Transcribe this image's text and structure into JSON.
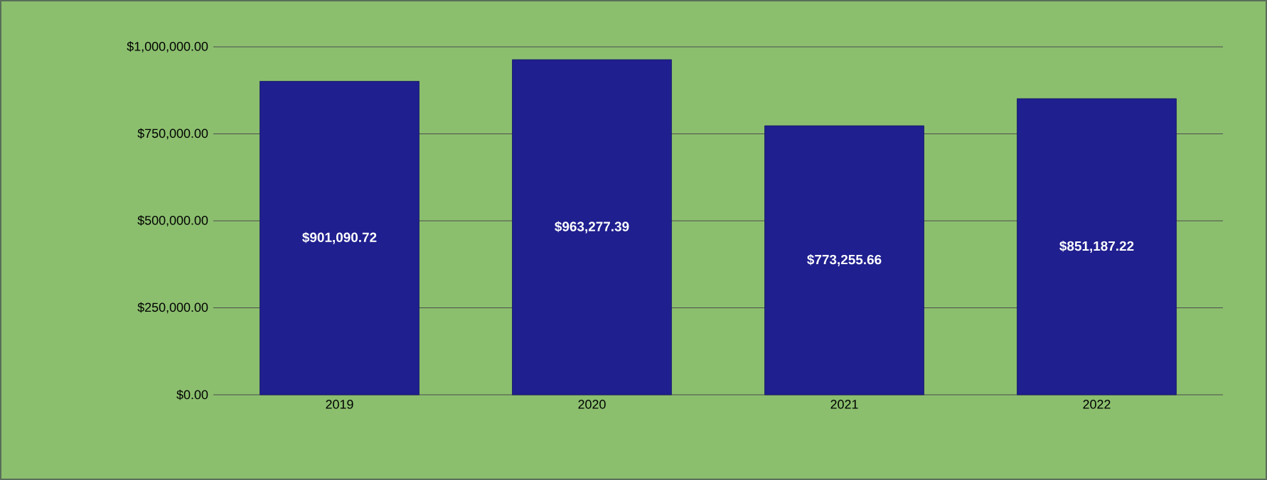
{
  "chart_data": {
    "type": "bar",
    "categories": [
      "2019",
      "2020",
      "2021",
      "2022"
    ],
    "series": [
      {
        "color": "#1f1f8f",
        "values": [
          901090.72,
          963277.39,
          773255.66,
          851187.22
        ],
        "value_labels": [
          "$901,090.72",
          "$963,277.39",
          "$773,255.66",
          "$851,187.22"
        ]
      }
    ],
    "ylim": [
      0,
      1000000
    ],
    "yticks": [
      {
        "value": 0,
        "label": "$0.00"
      },
      {
        "value": 250000,
        "label": "$250,000.00"
      },
      {
        "value": 500000,
        "label": "$500,000.00"
      },
      {
        "value": 750000,
        "label": "$750,000.00"
      },
      {
        "value": 1000000,
        "label": "$1,000,000.00"
      }
    ],
    "grid": "y"
  }
}
